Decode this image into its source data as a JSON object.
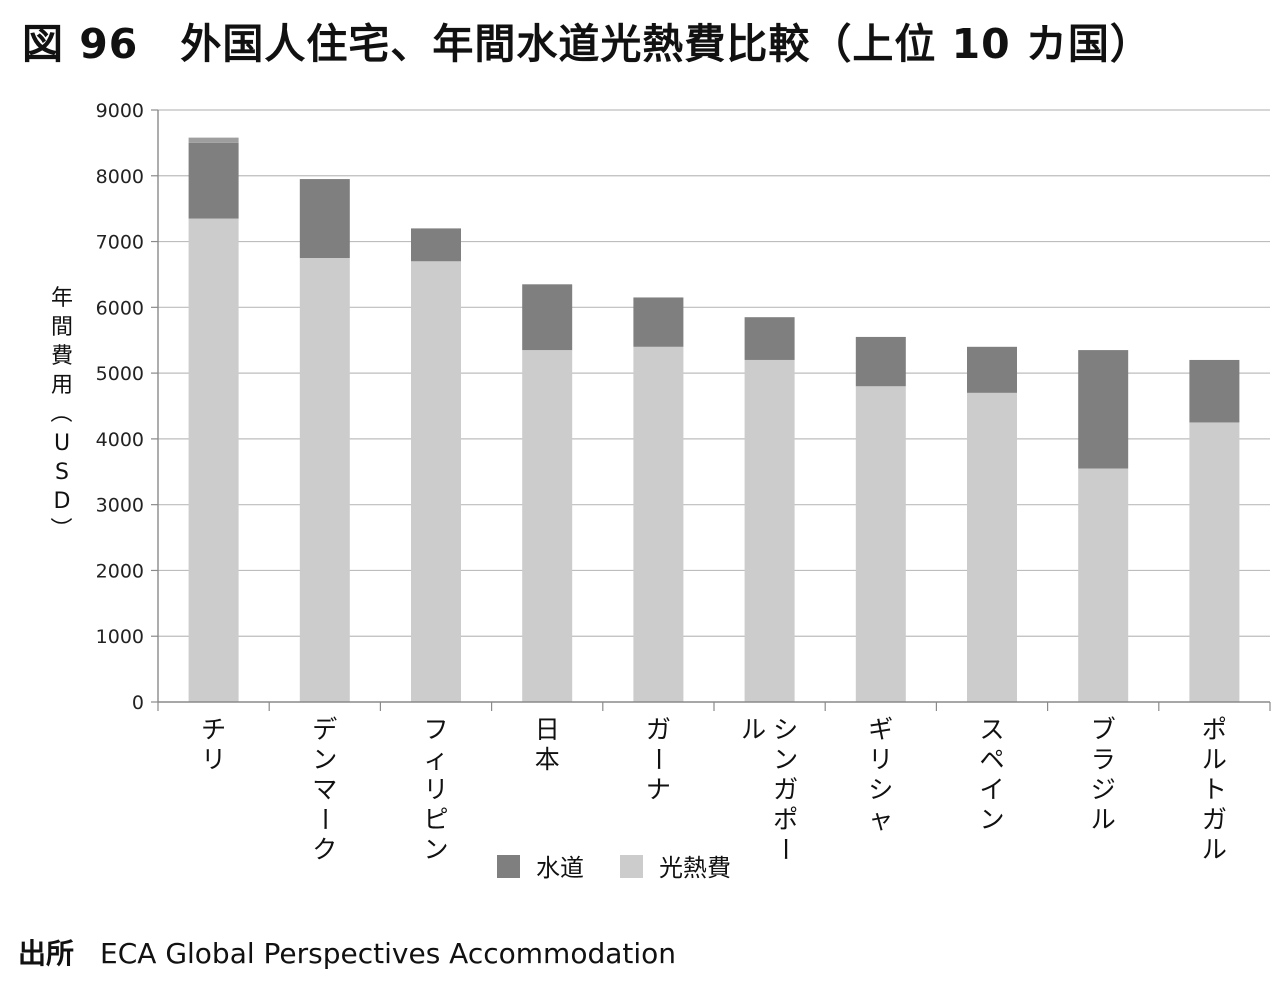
{
  "title": "図 96　外国人住宅、年間水道光熱費比較（上位 10 カ国）",
  "source": {
    "label": "出所",
    "text": "ECA Global Perspectives Accommodation"
  },
  "chart_data": {
    "type": "bar",
    "stacked": true,
    "title": "",
    "xlabel": "",
    "ylabel": "年間費用（USD）",
    "ylim": [
      0,
      9000
    ],
    "yticks": [
      0,
      1000,
      2000,
      3000,
      4000,
      5000,
      6000,
      7000,
      8000,
      9000
    ],
    "grid": true,
    "legend": "bottom",
    "categories": [
      "チリ",
      "デンマーク",
      "フィリピン",
      "日本",
      "ガーナ",
      "シンガポール",
      "ギリシャ",
      "スペイン",
      "ブラジル",
      "ポルトガル"
    ],
    "series": [
      {
        "name": "光熱費",
        "color": "#cccccc",
        "values": [
          7350,
          6750,
          6700,
          5350,
          5400,
          5200,
          4800,
          4700,
          3550,
          4250
        ]
      },
      {
        "name": "水道",
        "color": "#7f7f7f",
        "values": [
          1150,
          1200,
          500,
          1000,
          750,
          650,
          750,
          700,
          1800,
          950
        ]
      }
    ],
    "extra_top_segment": {
      "color": "#9e9e9e",
      "category": "チリ",
      "value": 80
    }
  }
}
